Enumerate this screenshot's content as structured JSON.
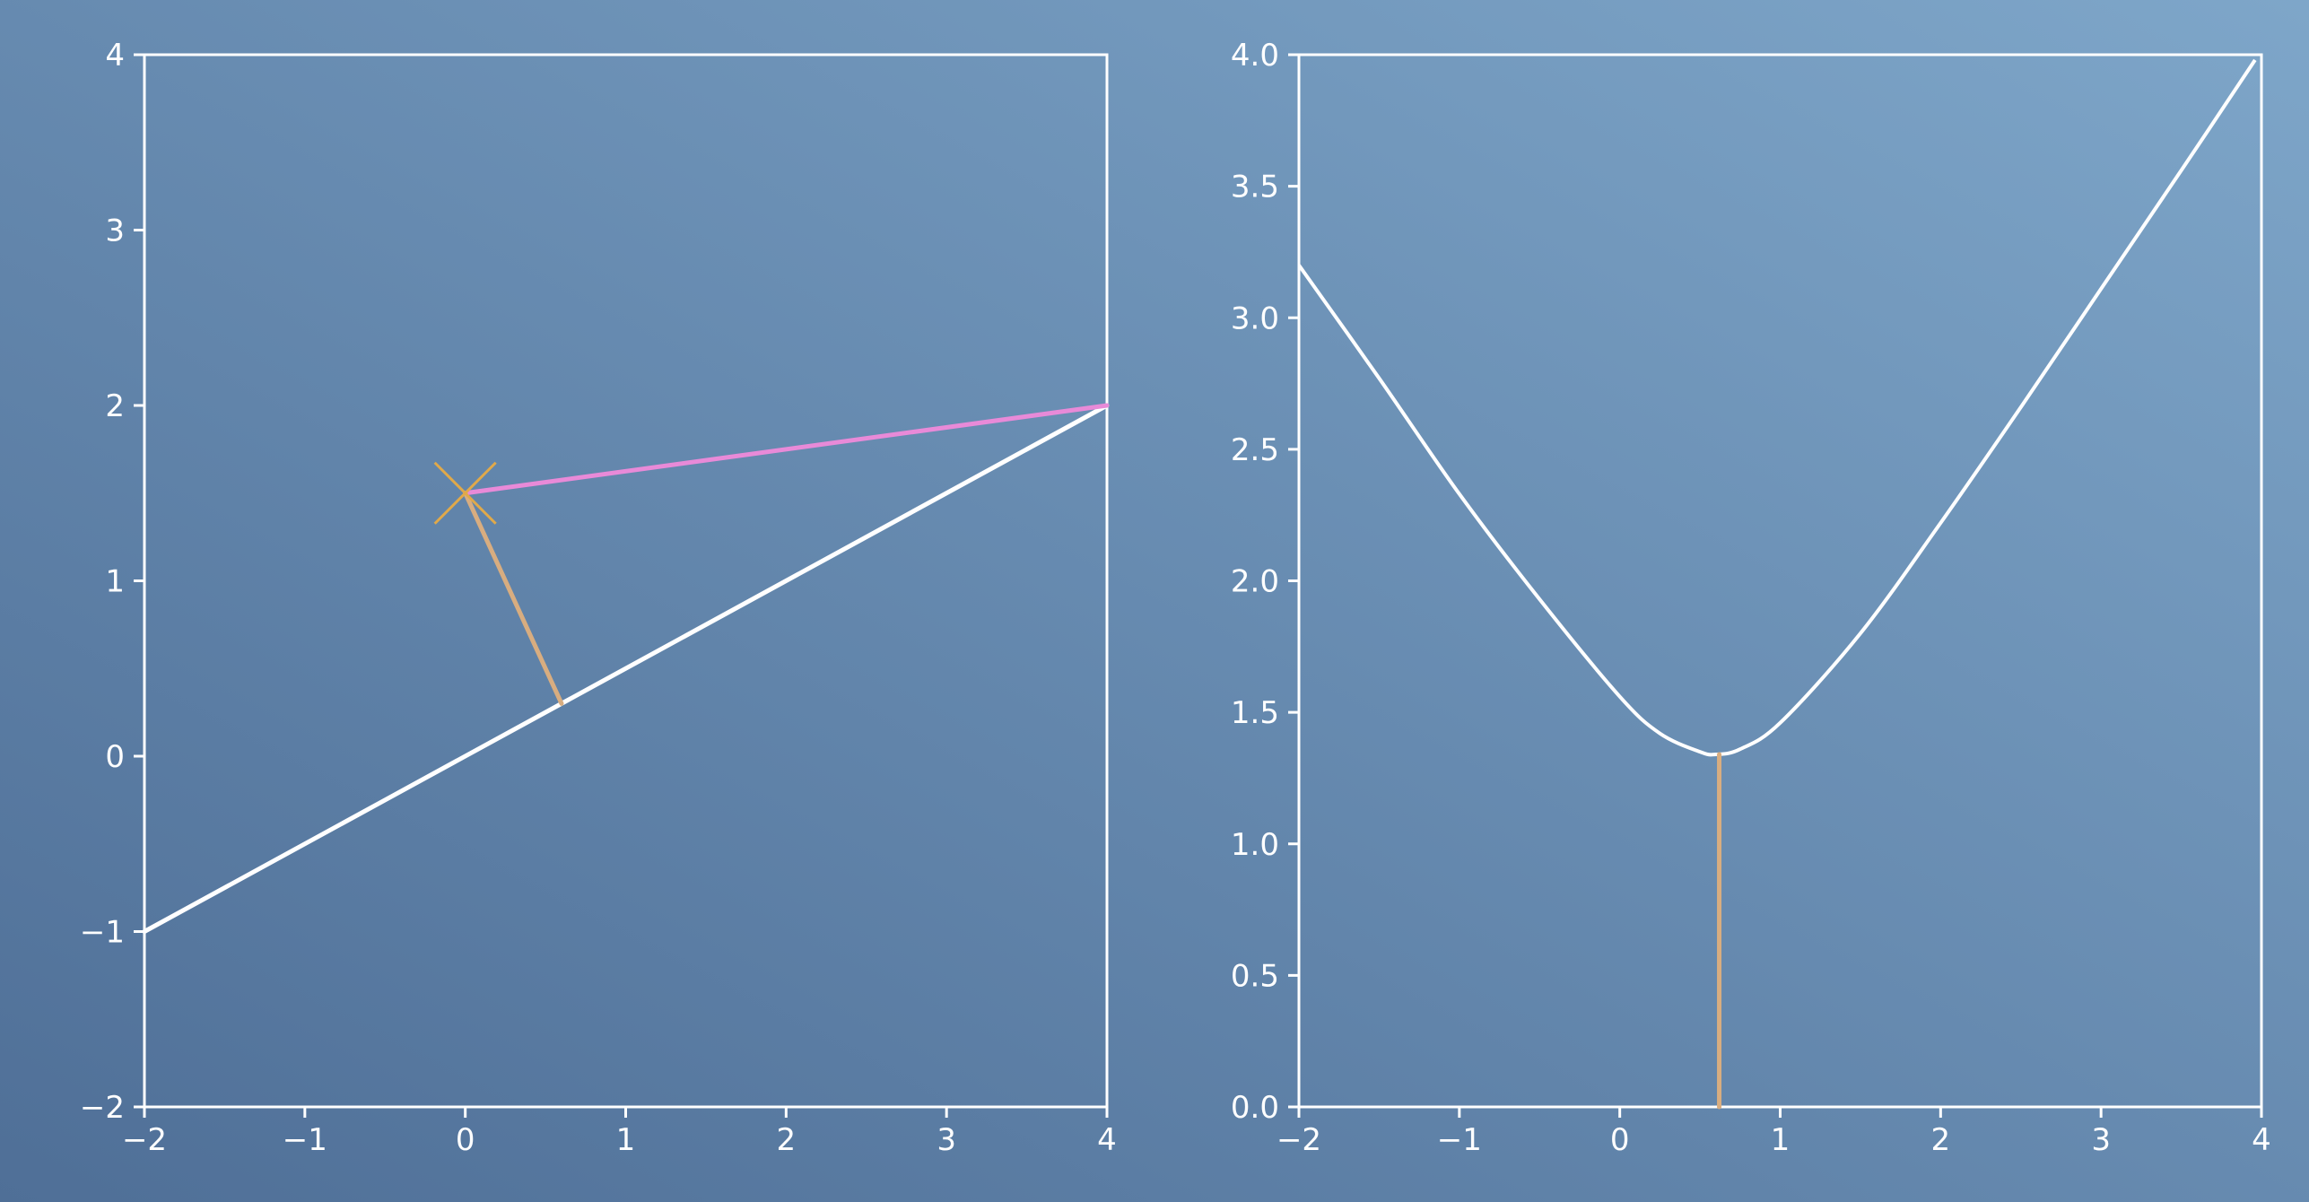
{
  "colors": {
    "background_top_right": "#7ea6c9",
    "background_bottom_left": "#4f6f97",
    "axis": "#ffffff",
    "curve": "#ffffff",
    "highlight_segment": "#e88ad8",
    "projection_segment": "#d8ad80",
    "marker": "#e0a94a"
  },
  "chart_data": [
    {
      "type": "line",
      "title": "",
      "xlabel": "",
      "ylabel": "",
      "xlim": [
        -2,
        4
      ],
      "ylim": [
        -2,
        4
      ],
      "xticks": [
        "−2",
        "−1",
        "0",
        "1",
        "2",
        "3",
        "4"
      ],
      "yticks": [
        "−2",
        "−1",
        "0",
        "1",
        "2",
        "3",
        "4"
      ],
      "grid": false,
      "series": [
        {
          "x": [
            -2,
            4
          ],
          "y": [
            -1,
            2
          ],
          "color": "#ffffff"
        },
        {
          "x": [
            0,
            4
          ],
          "y": [
            1.5,
            2
          ],
          "color": "#e88ad8"
        },
        {
          "x": [
            0,
            0.6
          ],
          "y": [
            1.5,
            0.3
          ],
          "color": "#d8ad80"
        }
      ],
      "points": [
        {
          "x": 0,
          "y": 1.5,
          "marker": "x",
          "color": "#e0a94a"
        }
      ]
    },
    {
      "type": "line",
      "title": "",
      "xlabel": "",
      "ylabel": "",
      "xlim": [
        -2,
        4
      ],
      "ylim": [
        0,
        4
      ],
      "xticks": [
        "−2",
        "−1",
        "0",
        "1",
        "2",
        "3",
        "4"
      ],
      "yticks": [
        "0.0",
        "0.5",
        "1.0",
        "1.5",
        "2.0",
        "2.5",
        "3.0",
        "3.5",
        "4.0"
      ],
      "grid": false,
      "series": [
        {
          "x": [
            -2,
            -1.5,
            -1,
            -0.5,
            0,
            0.25,
            0.5,
            0.6,
            0.75,
            1,
            1.5,
            2,
            2.5,
            3,
            3.5,
            3.96
          ],
          "y": [
            3.2,
            2.77,
            2.33,
            1.93,
            1.56,
            1.42,
            1.35,
            1.34,
            1.36,
            1.46,
            1.8,
            2.22,
            2.66,
            3.11,
            3.56,
            3.98
          ],
          "color": "#ffffff"
        },
        {
          "x": [
            0.62,
            0.62
          ],
          "y": [
            0,
            1.34
          ],
          "color": "#d8ad80"
        }
      ]
    }
  ]
}
